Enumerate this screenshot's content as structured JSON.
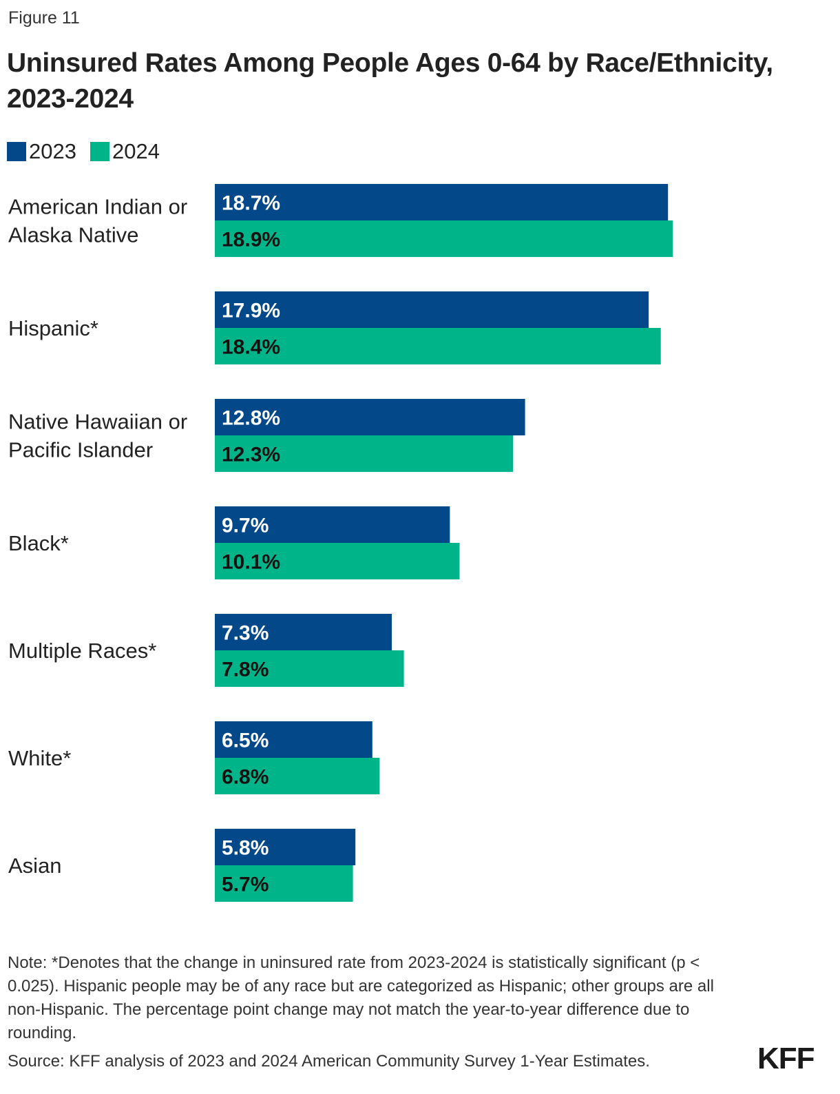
{
  "figure_label": "Figure 11",
  "colors": {
    "series_2023": "#03498a",
    "series_2024": "#00b489",
    "label_on_2023": "#ffffff",
    "label_on_2024": "#111111",
    "category_text": "#222222"
  },
  "chart_data": {
    "type": "bar",
    "orientation": "horizontal",
    "title": "Uninsured Rates Among People Ages 0-64 by Race/Ethnicity, 2023-2024",
    "legend_position": "top-left",
    "grid": false,
    "xlim": [
      0,
      20
    ],
    "categories": [
      [
        "American Indian or",
        "Alaska Native"
      ],
      [
        "Hispanic*"
      ],
      [
        "Native Hawaiian or",
        "Pacific Islander"
      ],
      [
        "Black*"
      ],
      [
        "Multiple Races*"
      ],
      [
        "White*"
      ],
      [
        "Asian"
      ]
    ],
    "series": [
      {
        "name": "2023",
        "values": [
          18.7,
          17.9,
          12.8,
          9.7,
          7.3,
          6.5,
          5.8
        ],
        "labels": [
          "18.7%",
          "17.9%",
          "12.8%",
          "9.7%",
          "7.3%",
          "6.5%",
          "5.8%"
        ]
      },
      {
        "name": "2024",
        "values": [
          18.9,
          18.4,
          12.3,
          10.1,
          7.8,
          6.8,
          5.7
        ],
        "labels": [
          "18.9%",
          "18.4%",
          "12.3%",
          "10.1%",
          "7.8%",
          "6.8%",
          "5.7%"
        ]
      }
    ]
  },
  "note": "Note: *Denotes that the change in uninsured rate from 2023-2024 is statistically significant (p < 0.025). Hispanic people may be of any race but are categorized as Hispanic; other groups are all non-Hispanic. The percentage point change may not match the year-to-year difference due to rounding.",
  "source": "Source: KFF analysis of 2023 and 2024 American Community Survey 1-Year Estimates.",
  "logo_text": "KFF"
}
